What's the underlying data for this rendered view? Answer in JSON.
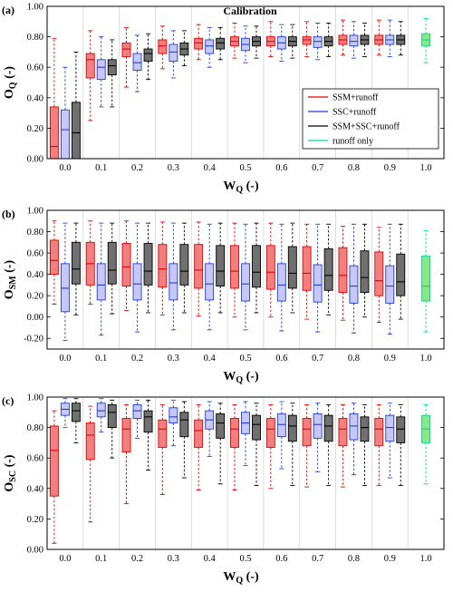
{
  "colors": {
    "ssm_edge": "#e60000",
    "ssm_fill": "#f08080",
    "ssc_edge": "#1f3fd6",
    "ssc_fill": "#c8c8f8",
    "all_edge": "#000000",
    "all_fill": "#707070",
    "ro_edge": "#00d890",
    "ro_fill": "#86e886",
    "grid": "#d4d4d4"
  },
  "legend": {
    "entries": [
      "SSM+runoff",
      "SSC+runoff",
      "SSM+SSC+runoff",
      "runoff only"
    ]
  },
  "chart_data": [
    {
      "type": "box",
      "panel_label": "(a)",
      "title": "Calibration",
      "xlabel_main": "W",
      "xlabel_sub": "Q",
      "xlabel_unit": "(-)",
      "ylabel_main": "O",
      "ylabel_sub": "Q",
      "ylabel_unit": "(-)",
      "ylim": [
        0,
        1
      ],
      "yticks": [
        "0.00",
        "0.20",
        "0.40",
        "0.60",
        "0.80",
        "1.00"
      ],
      "categories": [
        "0.0",
        "0.1",
        "0.2",
        "0.3",
        "0.4",
        "0.5",
        "0.6",
        "0.7",
        "0.8",
        "0.9",
        "1.0"
      ],
      "series": [
        {
          "name": "SSM+runoff",
          "boxes": [
            [
              0.0,
              0.0,
              0.08,
              0.34,
              0.79
            ],
            [
              0.25,
              0.53,
              0.65,
              0.69,
              0.84
            ],
            [
              0.47,
              0.67,
              0.72,
              0.76,
              0.86
            ],
            [
              0.59,
              0.69,
              0.74,
              0.78,
              0.87
            ],
            [
              0.65,
              0.72,
              0.76,
              0.79,
              0.88
            ],
            [
              0.66,
              0.74,
              0.77,
              0.8,
              0.89
            ],
            [
              0.67,
              0.74,
              0.77,
              0.8,
              0.9
            ],
            [
              0.67,
              0.75,
              0.78,
              0.8,
              0.9
            ],
            [
              0.68,
              0.75,
              0.78,
              0.81,
              0.91
            ],
            [
              0.68,
              0.75,
              0.78,
              0.81,
              0.91
            ]
          ]
        },
        {
          "name": "SSC+runoff",
          "boxes": [
            [
              0.0,
              0.0,
              0.19,
              0.32,
              0.6
            ],
            [
              0.34,
              0.52,
              0.6,
              0.65,
              0.8
            ],
            [
              0.44,
              0.58,
              0.63,
              0.69,
              0.81
            ],
            [
              0.53,
              0.64,
              0.7,
              0.75,
              0.84
            ],
            [
              0.6,
              0.69,
              0.74,
              0.78,
              0.86
            ],
            [
              0.63,
              0.71,
              0.75,
              0.79,
              0.87
            ],
            [
              0.64,
              0.72,
              0.76,
              0.8,
              0.88
            ],
            [
              0.65,
              0.73,
              0.77,
              0.8,
              0.89
            ],
            [
              0.66,
              0.74,
              0.77,
              0.81,
              0.9
            ],
            [
              0.67,
              0.75,
              0.78,
              0.81,
              0.91
            ]
          ]
        },
        {
          "name": "SSM+SSC+runoff",
          "boxes": [
            [
              0.0,
              0.0,
              0.17,
              0.37,
              0.7
            ],
            [
              0.34,
              0.55,
              0.61,
              0.65,
              0.78
            ],
            [
              0.52,
              0.64,
              0.69,
              0.72,
              0.82
            ],
            [
              0.61,
              0.68,
              0.72,
              0.76,
              0.84
            ],
            [
              0.65,
              0.72,
              0.76,
              0.79,
              0.86
            ],
            [
              0.66,
              0.74,
              0.77,
              0.8,
              0.87
            ],
            [
              0.66,
              0.74,
              0.77,
              0.8,
              0.88
            ],
            [
              0.67,
              0.74,
              0.77,
              0.8,
              0.89
            ],
            [
              0.67,
              0.75,
              0.78,
              0.81,
              0.89
            ],
            [
              0.68,
              0.75,
              0.78,
              0.81,
              0.9
            ]
          ]
        },
        {
          "name": "runoff only",
          "boxes": [
            [
              0.63,
              0.74,
              0.78,
              0.82,
              0.92
            ]
          ]
        }
      ]
    },
    {
      "type": "box",
      "panel_label": "(b)",
      "title": "",
      "xlabel_main": "W",
      "xlabel_sub": "Q",
      "xlabel_unit": "(-)",
      "ylabel_main": "O",
      "ylabel_sub": "SM",
      "ylabel_unit": "(-)",
      "ylim": [
        -0.3,
        1
      ],
      "yticks": [
        "-0.20",
        "0.00",
        "0.20",
        "0.40",
        "0.60",
        "0.80",
        "1.00"
      ],
      "categories": [
        "0.0",
        "0.1",
        "0.2",
        "0.3",
        "0.4",
        "0.5",
        "0.6",
        "0.7",
        "0.8",
        "0.9",
        "1.0"
      ],
      "series": [
        {
          "name": "SSM+runoff",
          "boxes": [
            [
              0.12,
              0.4,
              0.53,
              0.72,
              0.9
            ],
            [
              0.12,
              0.3,
              0.5,
              0.7,
              0.9
            ],
            [
              0.06,
              0.29,
              0.47,
              0.69,
              0.9
            ],
            [
              0.02,
              0.28,
              0.45,
              0.68,
              0.89
            ],
            [
              0.01,
              0.27,
              0.44,
              0.68,
              0.89
            ],
            [
              0.0,
              0.27,
              0.43,
              0.67,
              0.88
            ],
            [
              0.0,
              0.26,
              0.42,
              0.67,
              0.88
            ],
            [
              -0.02,
              0.25,
              0.41,
              0.66,
              0.87
            ],
            [
              -0.03,
              0.23,
              0.39,
              0.65,
              0.85
            ],
            [
              -0.05,
              0.2,
              0.34,
              0.61,
              0.84
            ]
          ]
        },
        {
          "name": "SSC+runoff",
          "boxes": [
            [
              -0.22,
              0.05,
              0.27,
              0.5,
              0.88
            ],
            [
              -0.17,
              0.16,
              0.3,
              0.5,
              0.88
            ],
            [
              -0.14,
              0.16,
              0.31,
              0.5,
              0.88
            ],
            [
              -0.12,
              0.16,
              0.32,
              0.5,
              0.88
            ],
            [
              -0.12,
              0.16,
              0.31,
              0.5,
              0.87
            ],
            [
              -0.12,
              0.15,
              0.31,
              0.5,
              0.87
            ],
            [
              -0.13,
              0.15,
              0.3,
              0.5,
              0.87
            ],
            [
              -0.14,
              0.14,
              0.3,
              0.49,
              0.87
            ],
            [
              -0.15,
              0.13,
              0.29,
              0.48,
              0.87
            ],
            [
              -0.16,
              0.13,
              0.29,
              0.48,
              0.87
            ]
          ]
        },
        {
          "name": "SSM+SSC+runoff",
          "boxes": [
            [
              0.02,
              0.31,
              0.45,
              0.7,
              0.88
            ],
            [
              0.03,
              0.31,
              0.44,
              0.7,
              0.88
            ],
            [
              0.04,
              0.3,
              0.43,
              0.69,
              0.88
            ],
            [
              0.04,
              0.3,
              0.43,
              0.68,
              0.88
            ],
            [
              0.04,
              0.29,
              0.43,
              0.67,
              0.88
            ],
            [
              0.04,
              0.28,
              0.42,
              0.67,
              0.88
            ],
            [
              0.04,
              0.27,
              0.41,
              0.66,
              0.88
            ],
            [
              0.02,
              0.25,
              0.39,
              0.64,
              0.87
            ],
            [
              0.0,
              0.23,
              0.37,
              0.62,
              0.87
            ],
            [
              -0.02,
              0.2,
              0.33,
              0.59,
              0.87
            ]
          ]
        },
        {
          "name": "runoff only",
          "boxes": [
            [
              -0.14,
              0.15,
              0.29,
              0.57,
              0.81
            ]
          ]
        }
      ]
    },
    {
      "type": "box",
      "panel_label": "(c)",
      "title": "",
      "xlabel_main": "W",
      "xlabel_sub": "Q",
      "xlabel_unit": "(-)",
      "ylabel_main": "O",
      "ylabel_sub": "SC",
      "ylabel_unit": "(-)",
      "ylim": [
        0,
        1
      ],
      "yticks": [
        "0.00",
        "0.20",
        "0.40",
        "0.60",
        "0.80",
        "1.00"
      ],
      "categories": [
        "0.0",
        "0.1",
        "0.2",
        "0.3",
        "0.4",
        "0.5",
        "0.6",
        "0.7",
        "0.8",
        "0.9",
        "1.0"
      ],
      "series": [
        {
          "name": "SSM+runoff",
          "boxes": [
            [
              0.04,
              0.35,
              0.65,
              0.81,
              0.91
            ],
            [
              0.18,
              0.59,
              0.75,
              0.83,
              0.94
            ],
            [
              0.3,
              0.64,
              0.79,
              0.86,
              0.95
            ],
            [
              0.36,
              0.67,
              0.79,
              0.85,
              0.95
            ],
            [
              0.39,
              0.67,
              0.78,
              0.85,
              0.95
            ],
            [
              0.39,
              0.67,
              0.79,
              0.86,
              0.95
            ],
            [
              0.4,
              0.67,
              0.79,
              0.86,
              0.95
            ],
            [
              0.41,
              0.68,
              0.79,
              0.86,
              0.95
            ],
            [
              0.41,
              0.68,
              0.79,
              0.86,
              0.95
            ],
            [
              0.42,
              0.68,
              0.79,
              0.86,
              0.95
            ]
          ]
        },
        {
          "name": "SSC+runoff",
          "boxes": [
            [
              0.8,
              0.88,
              0.92,
              0.96,
              0.99
            ],
            [
              0.77,
              0.87,
              0.91,
              0.96,
              0.99
            ],
            [
              0.73,
              0.86,
              0.91,
              0.95,
              0.98
            ],
            [
              0.68,
              0.83,
              0.87,
              0.93,
              0.98
            ],
            [
              0.61,
              0.79,
              0.85,
              0.91,
              0.97
            ],
            [
              0.55,
              0.76,
              0.83,
              0.9,
              0.97
            ],
            [
              0.53,
              0.74,
              0.82,
              0.89,
              0.97
            ],
            [
              0.51,
              0.73,
              0.82,
              0.89,
              0.96
            ],
            [
              0.49,
              0.72,
              0.81,
              0.89,
              0.96
            ],
            [
              0.47,
              0.71,
              0.8,
              0.88,
              0.96
            ]
          ]
        },
        {
          "name": "SSM+SSC+runoff",
          "boxes": [
            [
              0.7,
              0.84,
              0.91,
              0.96,
              0.99
            ],
            [
              0.6,
              0.8,
              0.9,
              0.95,
              0.98
            ],
            [
              0.52,
              0.77,
              0.87,
              0.91,
              0.98
            ],
            [
              0.47,
              0.74,
              0.85,
              0.9,
              0.97
            ],
            [
              0.43,
              0.73,
              0.83,
              0.89,
              0.96
            ],
            [
              0.42,
              0.72,
              0.82,
              0.88,
              0.96
            ],
            [
              0.42,
              0.71,
              0.81,
              0.88,
              0.96
            ],
            [
              0.42,
              0.71,
              0.81,
              0.88,
              0.95
            ],
            [
              0.42,
              0.71,
              0.8,
              0.87,
              0.95
            ],
            [
              0.42,
              0.7,
              0.79,
              0.87,
              0.95
            ]
          ]
        },
        {
          "name": "runoff only",
          "boxes": [
            [
              0.43,
              0.7,
              0.79,
              0.88,
              0.95
            ]
          ]
        }
      ]
    }
  ]
}
